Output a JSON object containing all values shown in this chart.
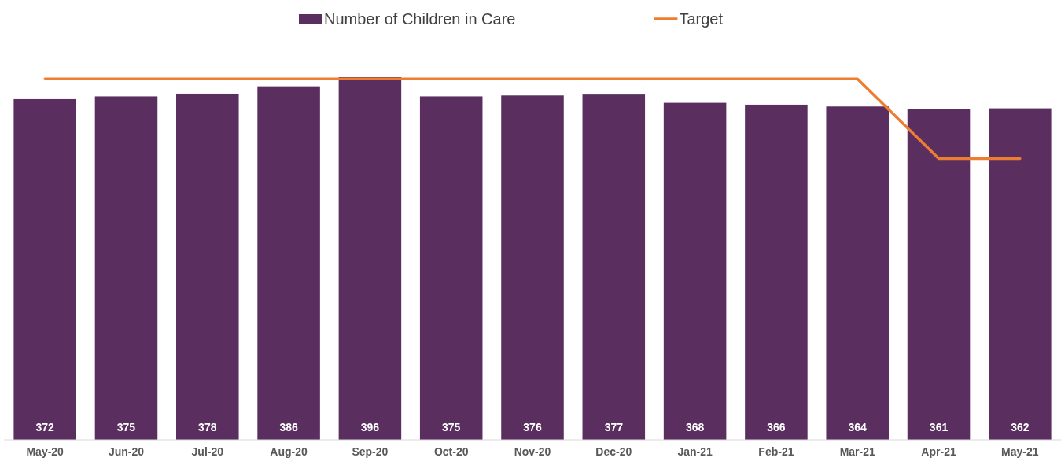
{
  "chart_data": {
    "type": "bar",
    "categories": [
      "May-20",
      "Jun-20",
      "Jul-20",
      "Aug-20",
      "Sep-20",
      "Oct-20",
      "Nov-20",
      "Dec-20",
      "Jan-21",
      "Feb-21",
      "Mar-21",
      "Apr-21",
      "May-21"
    ],
    "series": [
      {
        "name": "Number of Children in Care",
        "color": "#5a2f5f",
        "values": [
          372,
          375,
          378,
          386,
          396,
          375,
          376,
          377,
          368,
          366,
          364,
          361,
          362
        ],
        "value_labels": [
          "372",
          "375",
          "378",
          "386",
          "396",
          "375",
          "376",
          "377",
          "368",
          "366",
          "364",
          "361",
          "362"
        ]
      },
      {
        "name": "Target",
        "type": "line",
        "color": "#ed7d31",
        "values": [
          394,
          394,
          394,
          394,
          394,
          394,
          394,
          394,
          394,
          394,
          394,
          307,
          307
        ]
      }
    ],
    "tick_labels": "x",
    "legend": "top",
    "grid": false
  }
}
